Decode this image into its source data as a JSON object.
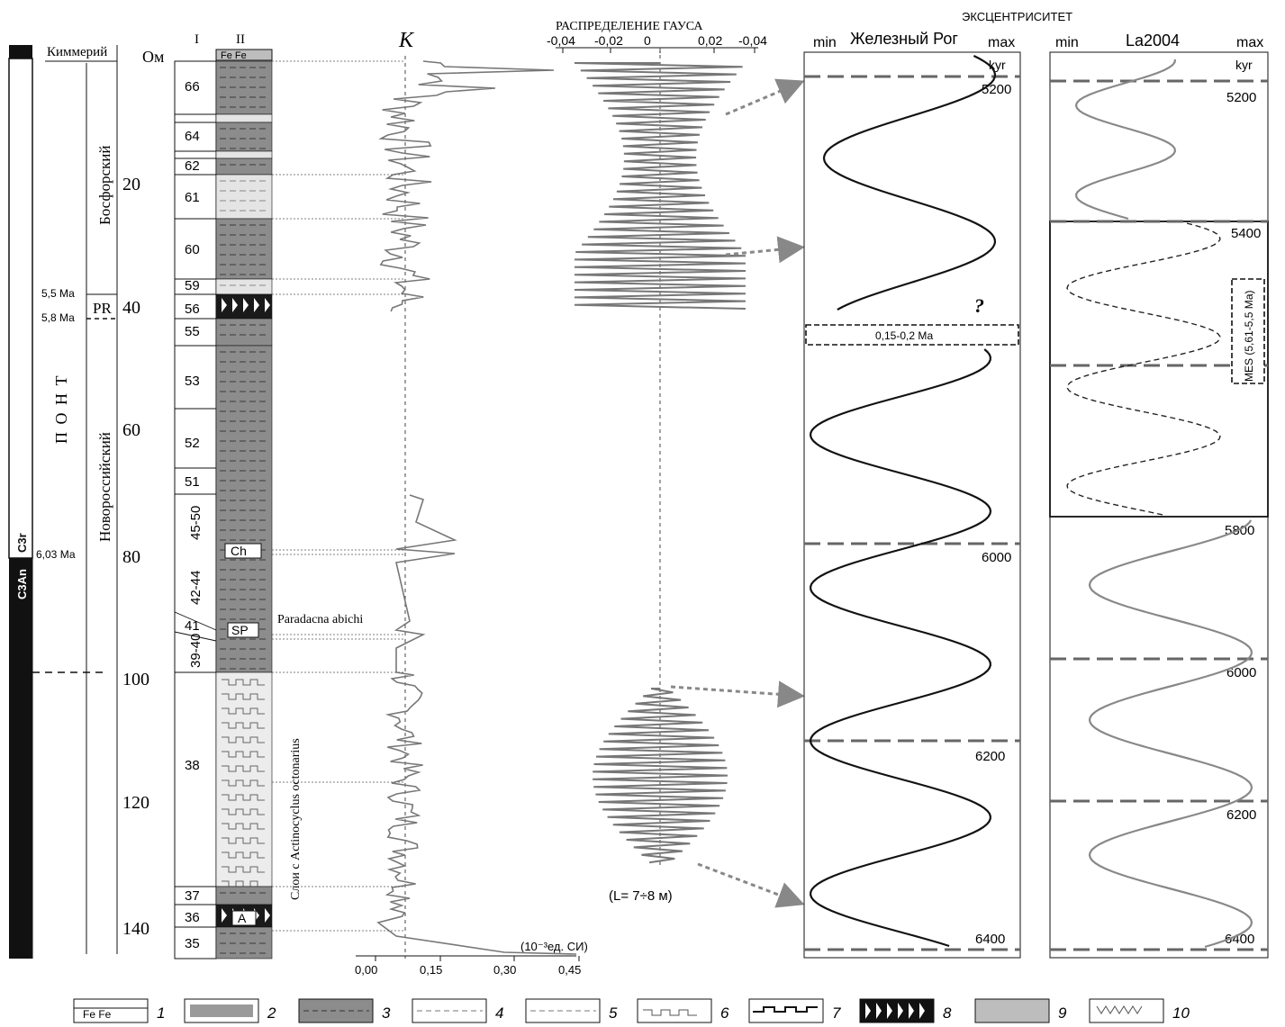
{
  "polarity": {
    "top_label": "",
    "c3r": "C3r",
    "c3an": "C3An"
  },
  "stages": {
    "kimmerian": "Киммерий",
    "pont": "П О Н Т",
    "bosporian": "Босфорский",
    "novorossian": "Новороссийский",
    "pr": "PR"
  },
  "ages": [
    "5,5 Ма",
    "5,8 Ма",
    "6,03 Ма"
  ],
  "depth": {
    "label": "Ом",
    "ticks": [
      "20",
      "40",
      "60",
      "80",
      "100",
      "120",
      "140"
    ]
  },
  "columns": {
    "col1": "I",
    "col2": "II",
    "fe_header": "Fe Fe"
  },
  "beds": [
    "66",
    "64",
    "62",
    "61",
    "60",
    "59",
    "56",
    "55",
    "53",
    "52",
    "51",
    "45-50",
    "42-44",
    "41",
    "39-40",
    "38",
    "37",
    "36",
    "35"
  ],
  "markers": {
    "ch": "Ch",
    "sp": "SP",
    "a": "A"
  },
  "annotations": {
    "paradacna": "Paradacna abichi",
    "actinocyclus": "Слои с Actinocyclus  octonarius"
  },
  "k_curve": {
    "symbol": "К",
    "ticks": [
      "0,00",
      "0,15",
      "0,30",
      "0,45"
    ],
    "unit": "(10⁻³ед. СИ)"
  },
  "gauss": {
    "title": "РАСПРЕДЕЛЕНИЕ ГАУСА",
    "ticks": [
      "-0,04",
      "-0,02",
      "0",
      "0,02",
      "-0,04"
    ],
    "wavelength": "(L= 7÷8 м)"
  },
  "eccentricity": {
    "title": "ЭКСЦЕНТРИСИТЕТ",
    "panel1": {
      "name": "Железный Рог",
      "min": "min",
      "max": "max",
      "unit": "kyr",
      "ticks": [
        "5200",
        "6000",
        "6200",
        "6400"
      ],
      "question": "?",
      "gap": "0,15-0,2 Ма"
    },
    "panel2": {
      "name": "La2004",
      "min": "min",
      "max": "max",
      "unit": "kyr",
      "ticks": [
        "5200",
        "5400",
        "5800",
        "6000",
        "6200",
        "6400"
      ],
      "mes": "MES (5,61-5,5 Ма)"
    }
  },
  "legend": [
    "1",
    "2",
    "3",
    "4",
    "5",
    "6",
    "7",
    "8",
    "9",
    "10"
  ],
  "legend_fe": "Fe  Fe",
  "colors": {
    "dark_bed": "#8a8a8a",
    "light_bed": "#e2e2e2",
    "curve": "#777777",
    "dashes": "#666666"
  }
}
